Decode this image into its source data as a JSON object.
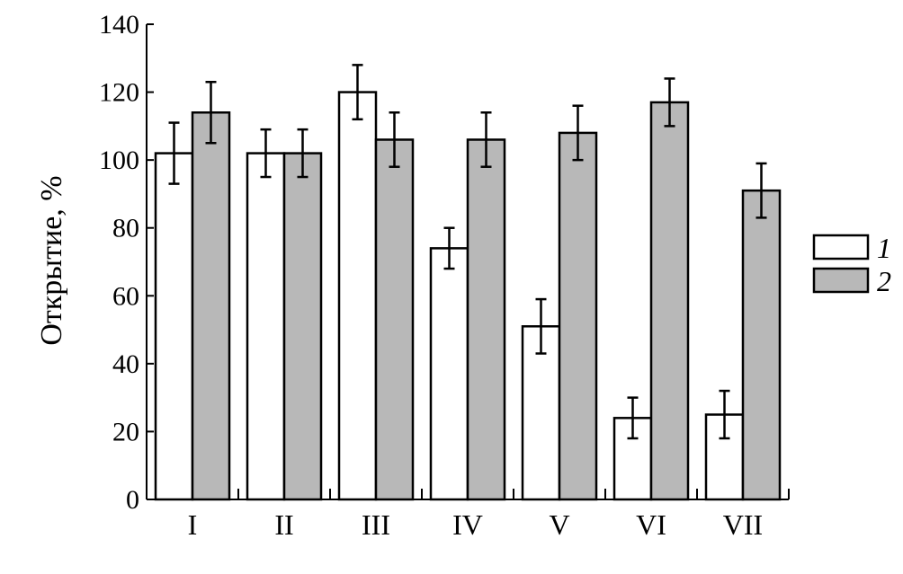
{
  "chart_data": {
    "type": "bar",
    "title": "",
    "xlabel": "",
    "ylabel": "Открытие, %",
    "ylim": [
      0,
      140
    ],
    "yticks": [
      0,
      20,
      40,
      60,
      80,
      100,
      120,
      140
    ],
    "grid": false,
    "legend_position": "right",
    "categories": [
      "I",
      "II",
      "III",
      "IV",
      "V",
      "VI",
      "VII"
    ],
    "series": [
      {
        "name": "1",
        "color": "#ffffff",
        "values": [
          102,
          102,
          120,
          74,
          51,
          24,
          25
        ],
        "error": [
          9,
          7,
          8,
          6,
          8,
          6,
          7
        ]
      },
      {
        "name": "2",
        "color": "#b8b8b8",
        "values": [
          114,
          102,
          106,
          106,
          108,
          117,
          91
        ],
        "error": [
          9,
          7,
          8,
          8,
          8,
          7,
          8
        ]
      }
    ]
  }
}
